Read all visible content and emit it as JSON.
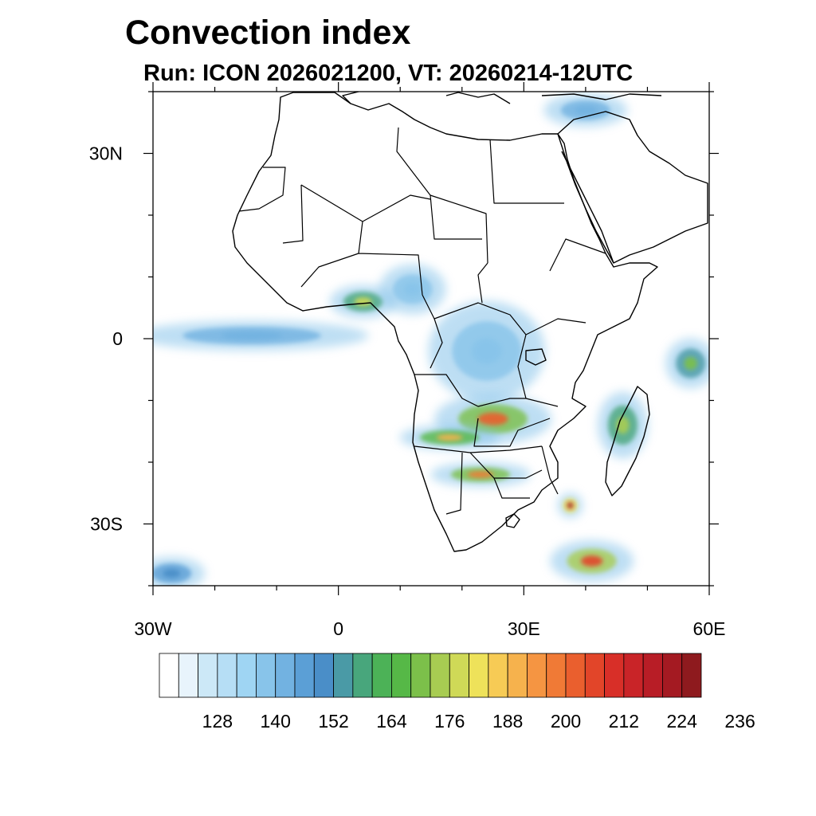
{
  "chart_data": {
    "type": "heatmap",
    "title": "Convection index",
    "subtitle": "Run: ICON 2026021200,  VT: 20260214-12UTC",
    "x_range": [
      -30,
      60
    ],
    "y_range": [
      -40,
      40
    ],
    "x_ticks": [
      {
        "value": -30,
        "label": "30W"
      },
      {
        "value": 0,
        "label": "0"
      },
      {
        "value": 30,
        "label": "30E"
      },
      {
        "value": 60,
        "label": "60E"
      }
    ],
    "y_ticks": [
      {
        "value": 30,
        "label": "30N"
      },
      {
        "value": 0,
        "label": "0"
      },
      {
        "value": -30,
        "label": "30S"
      }
    ],
    "colorbar": {
      "min": 116,
      "step": 4,
      "colors": [
        "#ffffff",
        "#e8f4fc",
        "#cce8f7",
        "#b6def5",
        "#9fd5f3",
        "#88c4ea",
        "#72b2e1",
        "#5b9fd6",
        "#4a8ec8",
        "#4a9aa6",
        "#48a67c",
        "#4cb257",
        "#56b847",
        "#7cc04a",
        "#a8cc52",
        "#cfd957",
        "#eee25a",
        "#f7cb55",
        "#f6b24d",
        "#f59542",
        "#f07a36",
        "#ea5f2e",
        "#e24529",
        "#d82f28",
        "#c92428",
        "#b81d26",
        "#a41a22",
        "#8e1a1e"
      ],
      "labels": [
        {
          "value": 128,
          "label": "128"
        },
        {
          "value": 140,
          "label": "140"
        },
        {
          "value": 152,
          "label": "152"
        },
        {
          "value": 164,
          "label": "164"
        },
        {
          "value": 176,
          "label": "176"
        },
        {
          "value": 188,
          "label": "188"
        },
        {
          "value": 200,
          "label": "200"
        },
        {
          "value": 212,
          "label": "212"
        },
        {
          "value": 224,
          "label": "224"
        },
        {
          "value": 236,
          "label": "236"
        }
      ]
    },
    "convective_areas": [
      {
        "name": "Gulf of Guinea band",
        "lon": 4,
        "lat": 6,
        "rx": 4,
        "ry": 2,
        "level": 176
      },
      {
        "name": "Equatorial Atlantic band",
        "lon": -14,
        "lat": 0.5,
        "rx": 14,
        "ry": 1.8,
        "level": 140
      },
      {
        "name": "Nigeria-Cameroon cloud",
        "lon": 12,
        "lat": 8,
        "rx": 4,
        "ry": 3,
        "level": 136
      },
      {
        "name": "Congo basin",
        "lon": 24,
        "lat": -2,
        "rx": 7,
        "ry": 6,
        "level": 136
      },
      {
        "name": "Zambia-Angola core",
        "lon": 25,
        "lat": -13,
        "rx": 7,
        "ry": 3,
        "level": 200
      },
      {
        "name": "Angola-Namibia border",
        "lon": 18,
        "lat": -16,
        "rx": 6,
        "ry": 1.5,
        "level": 188
      },
      {
        "name": "Botswana band",
        "lon": 23,
        "lat": -22,
        "rx": 6,
        "ry": 1.5,
        "level": 196
      },
      {
        "name": "Mozambique Channel cyclone",
        "lon": 37.5,
        "lat": -27,
        "rx": 1.5,
        "ry": 1.5,
        "level": 220
      },
      {
        "name": "Southwest Indian Ocean band",
        "lon": 41,
        "lat": -36,
        "rx": 5,
        "ry": 2.5,
        "level": 204
      },
      {
        "name": "Madagascar",
        "lon": 46,
        "lat": -14,
        "rx": 3,
        "ry": 4,
        "level": 172
      },
      {
        "name": "East equatorial Indian Ocean",
        "lon": 57,
        "lat": -4,
        "rx": 3,
        "ry": 3,
        "level": 168
      },
      {
        "name": "Mediterranean cloud",
        "lon": 40,
        "lat": 37,
        "rx": 5,
        "ry": 2,
        "level": 140
      },
      {
        "name": "South Atlantic southwest",
        "lon": -27,
        "lat": -38,
        "rx": 4,
        "ry": 2,
        "level": 148
      }
    ],
    "map_region": "Africa and surrounding oceans",
    "coastlines_shown": true,
    "country_borders_shown": true
  }
}
